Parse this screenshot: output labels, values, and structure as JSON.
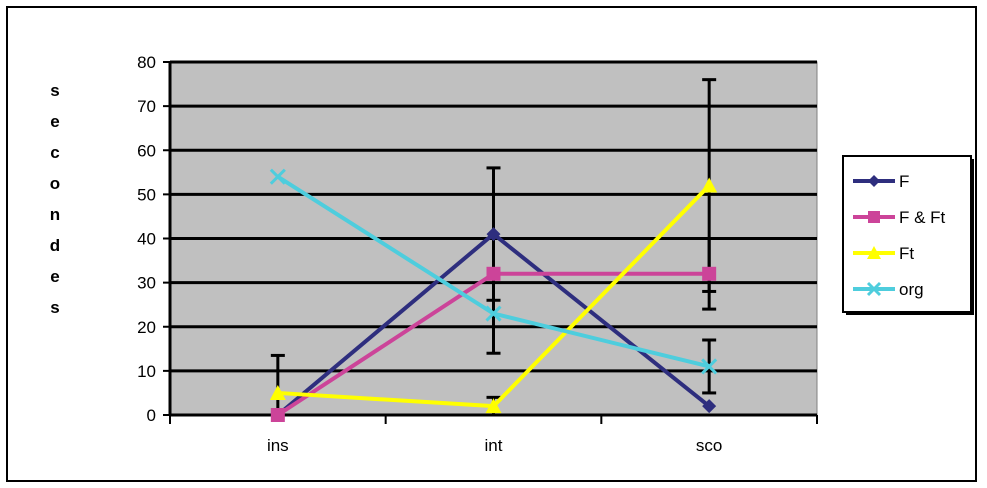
{
  "chart_data": {
    "type": "line",
    "title": "",
    "xlabel": "",
    "ylabel": "secondes",
    "categories": [
      "ins",
      "int",
      "sco"
    ],
    "ylim": [
      0,
      80
    ],
    "yticks": [
      0,
      10,
      20,
      30,
      40,
      50,
      60,
      70,
      80
    ],
    "grid": true,
    "legend_position": "right",
    "plot_background": "#c0c0c0",
    "series": [
      {
        "name": "F",
        "values": [
          0,
          41,
          2
        ],
        "color": "#2e2e7e",
        "marker": "diamond",
        "error": [
          null,
          15,
          null
        ]
      },
      {
        "name": "F & Ft",
        "values": [
          0,
          32,
          32
        ],
        "color": "#cc4499",
        "marker": "square",
        "error": [
          null,
          null,
          8
        ]
      },
      {
        "name": "Ft",
        "values": [
          5,
          2,
          52
        ],
        "color": "#ffff00",
        "marker": "triangle",
        "error": [
          8.5,
          2,
          24
        ]
      },
      {
        "name": "org",
        "values": [
          54,
          23,
          11
        ],
        "color": "#4ecddd",
        "marker": "x",
        "error": [
          null,
          9,
          6
        ]
      }
    ]
  }
}
